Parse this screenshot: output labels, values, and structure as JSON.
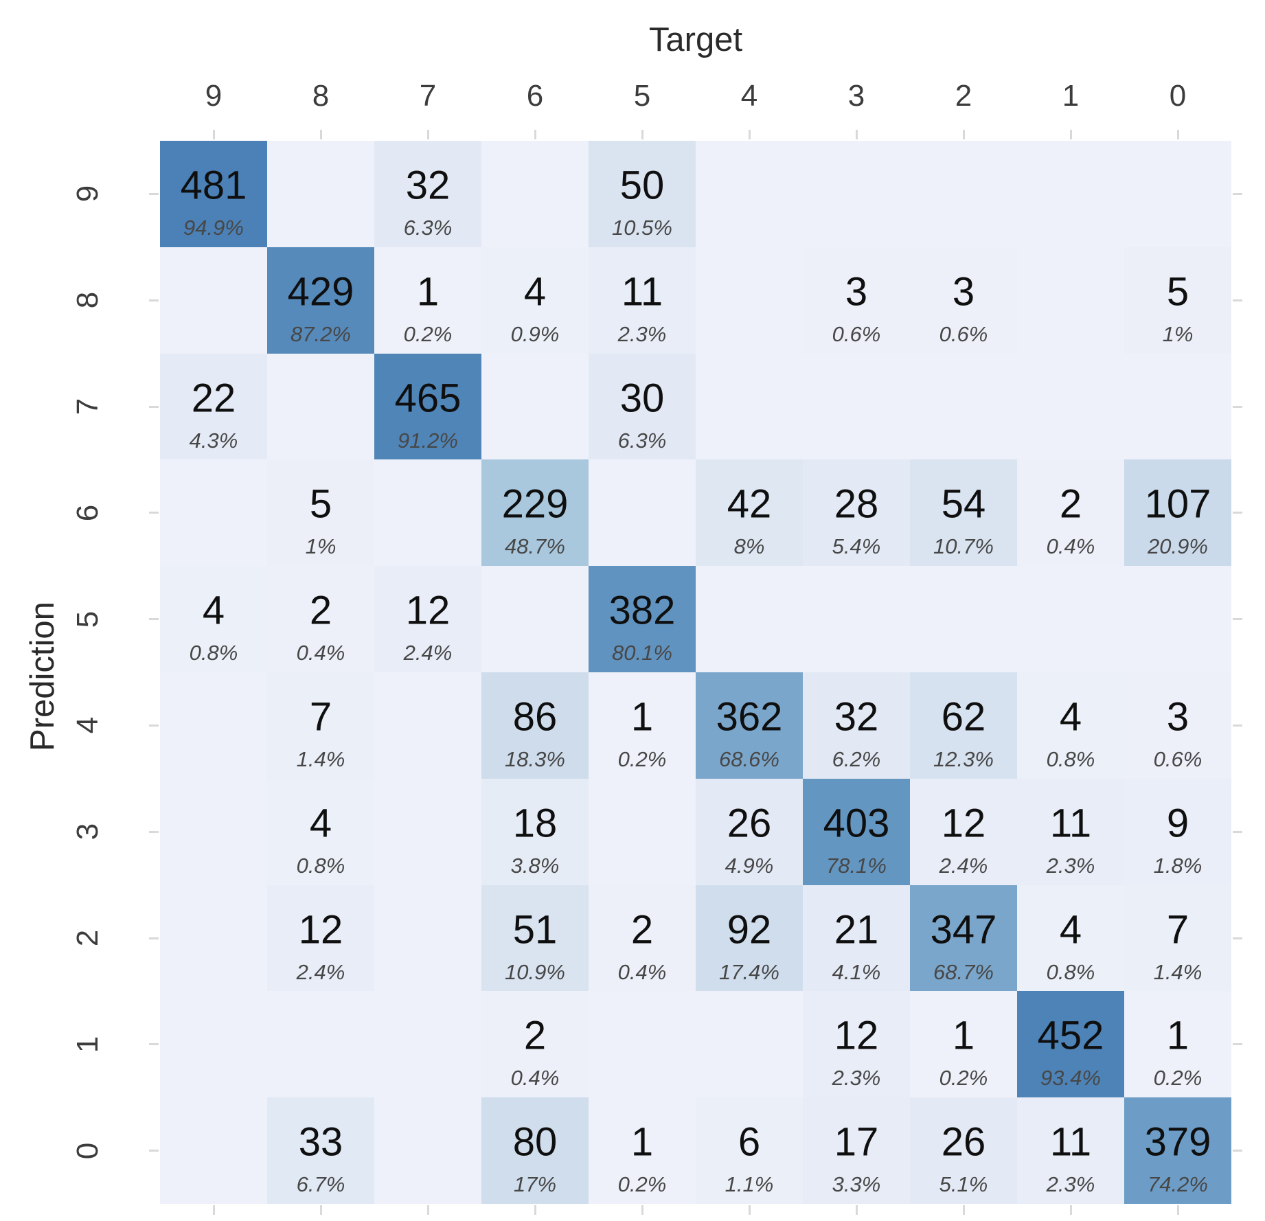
{
  "chart_data": {
    "type": "heatmap",
    "title": "",
    "xlabel": "Target",
    "ylabel": "Prediction",
    "x_categories": [
      "9",
      "8",
      "7",
      "6",
      "5",
      "4",
      "3",
      "2",
      "1",
      "0"
    ],
    "y_categories": [
      "9",
      "8",
      "7",
      "6",
      "5",
      "4",
      "3",
      "2",
      "1",
      "0"
    ],
    "grid": "off",
    "legend_position": "none",
    "cells": [
      [
        {
          "count": 481,
          "pct": "94.9%"
        },
        null,
        {
          "count": 32,
          "pct": "6.3%"
        },
        null,
        {
          "count": 50,
          "pct": "10.5%"
        },
        null,
        null,
        null,
        null,
        null
      ],
      [
        null,
        {
          "count": 429,
          "pct": "87.2%"
        },
        {
          "count": 1,
          "pct": "0.2%"
        },
        {
          "count": 4,
          "pct": "0.9%"
        },
        {
          "count": 11,
          "pct": "2.3%"
        },
        null,
        {
          "count": 3,
          "pct": "0.6%"
        },
        {
          "count": 3,
          "pct": "0.6%"
        },
        null,
        {
          "count": 5,
          "pct": "1%"
        }
      ],
      [
        {
          "count": 22,
          "pct": "4.3%"
        },
        null,
        {
          "count": 465,
          "pct": "91.2%"
        },
        null,
        {
          "count": 30,
          "pct": "6.3%"
        },
        null,
        null,
        null,
        null,
        null
      ],
      [
        null,
        {
          "count": 5,
          "pct": "1%"
        },
        null,
        {
          "count": 229,
          "pct": "48.7%"
        },
        null,
        {
          "count": 42,
          "pct": "8%"
        },
        {
          "count": 28,
          "pct": "5.4%"
        },
        {
          "count": 54,
          "pct": "10.7%"
        },
        {
          "count": 2,
          "pct": "0.4%"
        },
        {
          "count": 107,
          "pct": "20.9%"
        }
      ],
      [
        {
          "count": 4,
          "pct": "0.8%"
        },
        {
          "count": 2,
          "pct": "0.4%"
        },
        {
          "count": 12,
          "pct": "2.4%"
        },
        null,
        {
          "count": 382,
          "pct": "80.1%"
        },
        null,
        null,
        null,
        null,
        null
      ],
      [
        null,
        {
          "count": 7,
          "pct": "1.4%"
        },
        null,
        {
          "count": 86,
          "pct": "18.3%"
        },
        {
          "count": 1,
          "pct": "0.2%"
        },
        {
          "count": 362,
          "pct": "68.6%"
        },
        {
          "count": 32,
          "pct": "6.2%"
        },
        {
          "count": 62,
          "pct": "12.3%"
        },
        {
          "count": 4,
          "pct": "0.8%"
        },
        {
          "count": 3,
          "pct": "0.6%"
        }
      ],
      [
        null,
        {
          "count": 4,
          "pct": "0.8%"
        },
        null,
        {
          "count": 18,
          "pct": "3.8%"
        },
        null,
        {
          "count": 26,
          "pct": "4.9%"
        },
        {
          "count": 403,
          "pct": "78.1%"
        },
        {
          "count": 12,
          "pct": "2.4%"
        },
        {
          "count": 11,
          "pct": "2.3%"
        },
        {
          "count": 9,
          "pct": "1.8%"
        }
      ],
      [
        null,
        {
          "count": 12,
          "pct": "2.4%"
        },
        null,
        {
          "count": 51,
          "pct": "10.9%"
        },
        {
          "count": 2,
          "pct": "0.4%"
        },
        {
          "count": 92,
          "pct": "17.4%"
        },
        {
          "count": 21,
          "pct": "4.1%"
        },
        {
          "count": 347,
          "pct": "68.7%"
        },
        {
          "count": 4,
          "pct": "0.8%"
        },
        {
          "count": 7,
          "pct": "1.4%"
        }
      ],
      [
        null,
        null,
        null,
        {
          "count": 2,
          "pct": "0.4%"
        },
        null,
        null,
        {
          "count": 12,
          "pct": "2.3%"
        },
        {
          "count": 1,
          "pct": "0.2%"
        },
        {
          "count": 452,
          "pct": "93.4%"
        },
        {
          "count": 1,
          "pct": "0.2%"
        }
      ],
      [
        null,
        {
          "count": 33,
          "pct": "6.7%"
        },
        null,
        {
          "count": 80,
          "pct": "17%"
        },
        {
          "count": 1,
          "pct": "0.2%"
        },
        {
          "count": 6,
          "pct": "1.1%"
        },
        {
          "count": 17,
          "pct": "3.3%"
        },
        {
          "count": 26,
          "pct": "5.1%"
        },
        {
          "count": 11,
          "pct": "2.3%"
        },
        {
          "count": 379,
          "pct": "74.2%"
        }
      ]
    ],
    "colors": {
      "count_text": "#0f0f0f",
      "pct_text": "#474747",
      "tick": "#d9d9d9",
      "axis_text": "#3c3c3c",
      "colormap_stops": [
        [
          0,
          238,
          241,
          249
        ],
        [
          2.5,
          232,
          237,
          247
        ],
        [
          6.3,
          226,
          233,
          244
        ],
        [
          10.7,
          218,
          228,
          241
        ],
        [
          17.4,
          207,
          221,
          237
        ],
        [
          20.9,
          202,
          218,
          235
        ],
        [
          48.7,
          169,
          200,
          222
        ],
        [
          68.6,
          123,
          166,
          203
        ],
        [
          78.1,
          100,
          150,
          194
        ],
        [
          87.2,
          86,
          138,
          187
        ],
        [
          94.9,
          75,
          129,
          182
        ]
      ]
    }
  }
}
